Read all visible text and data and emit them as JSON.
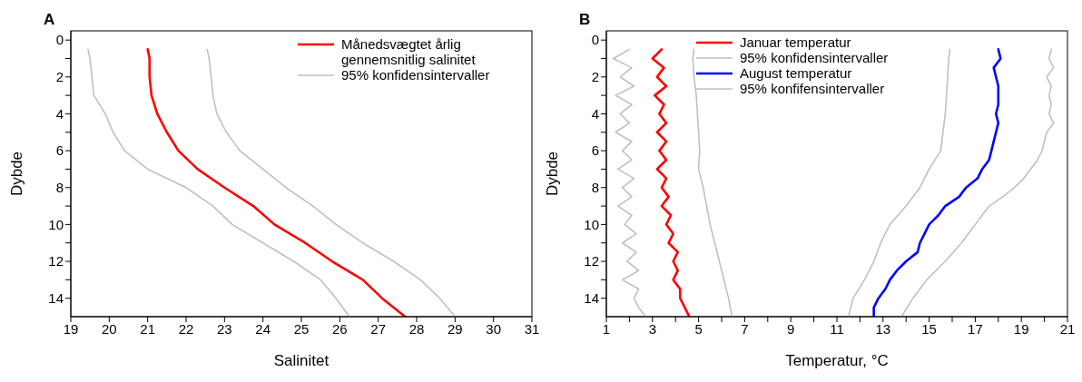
{
  "chart_data": [
    {
      "type": "line",
      "title": "A",
      "xlabel": "Salinitet",
      "ylabel": "Dybde",
      "legend": "top right",
      "xlim": [
        19,
        31
      ],
      "xticks": [
        19,
        20,
        21,
        22,
        23,
        24,
        25,
        26,
        27,
        28,
        29,
        30,
        31
      ],
      "ylim": [
        15,
        -0.5
      ],
      "yticks": [
        0,
        {
          "value": 1,
          "label": null
        },
        2,
        {
          "value": 3,
          "label": null
        },
        4,
        {
          "value": 5,
          "label": null
        },
        6,
        {
          "value": 7,
          "label": null
        },
        8,
        {
          "value": 9,
          "label": null
        },
        10,
        {
          "value": 11,
          "label": null
        },
        12,
        {
          "value": 13,
          "label": null
        },
        14
      ],
      "series": [
        {
          "name": "Månedsvægtet årlig gennemsnitlig salinitet",
          "color": "#ff0000",
          "x": [
            21.0,
            21.05,
            21.05,
            21.1,
            21.25,
            21.5,
            21.8,
            22.3,
            23.0,
            23.75,
            24.3,
            25.1,
            25.8,
            26.6,
            27.1,
            27.7
          ],
          "values": [
            0.5,
            1,
            2,
            3,
            4,
            5,
            6,
            7,
            8,
            9,
            10,
            11,
            12,
            13,
            14,
            15
          ]
        },
        {
          "name": "95% konfidensintervaller",
          "color": "#c0c0c0",
          "x": [
            19.45,
            19.5,
            19.55,
            19.6,
            19.9,
            20.1,
            20.4,
            21.0,
            22.0,
            22.7,
            23.2,
            24.0,
            24.8,
            25.5,
            25.9,
            26.25
          ],
          "values": [
            0.5,
            1,
            2,
            3,
            4,
            5,
            6,
            7,
            8,
            9,
            10,
            11,
            12,
            13,
            14,
            15
          ]
        },
        {
          "color": "#c0c0c0",
          "x": [
            22.55,
            22.6,
            22.65,
            22.7,
            22.8,
            23.05,
            23.4,
            24.0,
            24.6,
            25.3,
            25.9,
            26.6,
            27.4,
            28.1,
            28.6,
            29.0
          ],
          "values": [
            0.5,
            1,
            2,
            3,
            4,
            5,
            6,
            7,
            8,
            9,
            10,
            11,
            12,
            13,
            14,
            15
          ]
        }
      ]
    },
    {
      "type": "line",
      "title": "B",
      "xlabel": "Temperatur, °C",
      "ylabel": "Dybde",
      "legend": "top",
      "xlim": [
        1,
        21
      ],
      "xticks": [
        1,
        {
          "value": 2,
          "label": null
        },
        3,
        {
          "value": 4,
          "label": null
        },
        5,
        {
          "value": 6,
          "label": null
        },
        7,
        {
          "value": 8,
          "label": null
        },
        9,
        {
          "value": 10,
          "label": null
        },
        11,
        {
          "value": 12,
          "label": null
        },
        13,
        {
          "value": 14,
          "label": null
        },
        15,
        {
          "value": 16,
          "label": null
        },
        17,
        {
          "value": 18,
          "label": null
        },
        19,
        {
          "value": 20,
          "label": null
        },
        21
      ],
      "ylim": [
        15,
        -0.5
      ],
      "yticks": [
        0,
        {
          "value": 1,
          "label": null
        },
        2,
        {
          "value": 3,
          "label": null
        },
        4,
        {
          "value": 5,
          "label": null
        },
        6,
        {
          "value": 7,
          "label": null
        },
        8,
        {
          "value": 9,
          "label": null
        },
        10,
        {
          "value": 11,
          "label": null
        },
        12,
        {
          "value": 13,
          "label": null
        },
        14
      ],
      "series": [
        {
          "name": "Januar temperatur",
          "color": "#ff0000",
          "x": [
            3.4,
            3.0,
            3.5,
            3.2,
            3.6,
            3.1,
            3.5,
            3.3,
            3.6,
            3.2,
            3.6,
            3.3,
            3.6,
            3.2,
            3.6,
            3.4,
            3.7,
            3.4,
            3.8,
            3.6,
            3.9,
            3.7,
            4.1,
            3.9,
            4.1,
            3.9,
            4.2,
            4.2,
            4.4,
            4.6
          ],
          "values": [
            0.5,
            1,
            1.5,
            2,
            2.5,
            3,
            3.5,
            4,
            4.5,
            5,
            5.5,
            6,
            6.5,
            7,
            7.5,
            8,
            8.5,
            9,
            9.5,
            10,
            10.5,
            11,
            11.5,
            12,
            12.5,
            13,
            13.5,
            14,
            14.5,
            15
          ]
        },
        {
          "name": "95% konfidensintervaller",
          "color": "#c0c0c0",
          "x": [
            2.0,
            1.3,
            2.1,
            1.6,
            2.2,
            1.4,
            2.1,
            1.6,
            2.0,
            1.4,
            2.1,
            1.7,
            2.1,
            1.5,
            2.2,
            1.7,
            2.1,
            1.5,
            2.1,
            1.8,
            2.3,
            1.7,
            2.3,
            1.9,
            2.4,
            1.7,
            2.4,
            2.2,
            2.4,
            2.7
          ],
          "values": [
            0.5,
            1,
            1.5,
            2,
            2.5,
            3,
            3.5,
            4,
            4.5,
            5,
            5.5,
            6,
            6.5,
            7,
            7.5,
            8,
            8.5,
            9,
            9.5,
            10,
            10.5,
            11,
            11.5,
            12,
            12.5,
            13,
            13.5,
            14,
            14.5,
            15
          ]
        },
        {
          "color": "#c0c0c0",
          "x": [
            4.8,
            4.75,
            4.8,
            4.9,
            4.95,
            5.0,
            5.05,
            5.0,
            5.2,
            5.35,
            5.5,
            5.7,
            5.9,
            6.1,
            6.3,
            6.45
          ],
          "values": [
            0.5,
            1,
            2,
            3,
            4,
            5,
            6,
            7,
            8,
            9,
            10,
            11,
            12,
            13,
            14,
            15
          ]
        },
        {
          "name": "August temperatur",
          "color": "#0000ff",
          "x": [
            18.0,
            18.1,
            17.8,
            17.9,
            18.0,
            18.0,
            18.0,
            17.9,
            18.0,
            17.9,
            17.8,
            17.7,
            17.6,
            17.3,
            17.1,
            16.6,
            16.3,
            15.7,
            15.4,
            15.0,
            14.8,
            14.6,
            14.5,
            14.0,
            13.6,
            13.3,
            13.1,
            12.8,
            12.6,
            12.6
          ],
          "values": [
            0.5,
            1,
            1.5,
            2,
            2.5,
            3,
            3.5,
            4,
            4.5,
            5,
            5.5,
            6,
            6.5,
            7,
            7.5,
            8,
            8.5,
            9,
            9.5,
            10,
            10.5,
            11,
            11.5,
            12,
            12.5,
            13,
            13.5,
            14,
            14.5,
            15
          ]
        },
        {
          "name": "95% konfifensintervaller",
          "color": "#c0c0c0",
          "x": [
            15.9,
            15.85,
            15.8,
            15.75,
            15.7,
            15.6,
            15.5,
            15.0,
            14.6,
            14.0,
            13.3,
            12.9,
            12.6,
            12.2,
            11.7,
            11.5
          ],
          "values": [
            0.5,
            1,
            2,
            3,
            4,
            5,
            6,
            7,
            8,
            9,
            10,
            11,
            12,
            13,
            14,
            15
          ]
        },
        {
          "color": "#c0c0c0",
          "x": [
            20.3,
            20.2,
            20.4,
            20.1,
            20.3,
            20.2,
            20.3,
            20.2,
            20.4,
            20.1,
            20.0,
            19.9,
            19.7,
            19.4,
            19.1,
            18.7,
            18.2,
            17.6,
            17.0,
            16.4,
            15.7,
            14.9,
            14.3,
            13.8
          ],
          "values": [
            0.5,
            1,
            1.5,
            2,
            2.5,
            3,
            3.5,
            4,
            4.5,
            5,
            5.5,
            6,
            6.5,
            7,
            7.5,
            8,
            8.5,
            9,
            10,
            11,
            12,
            13,
            14,
            15
          ]
        }
      ]
    }
  ]
}
